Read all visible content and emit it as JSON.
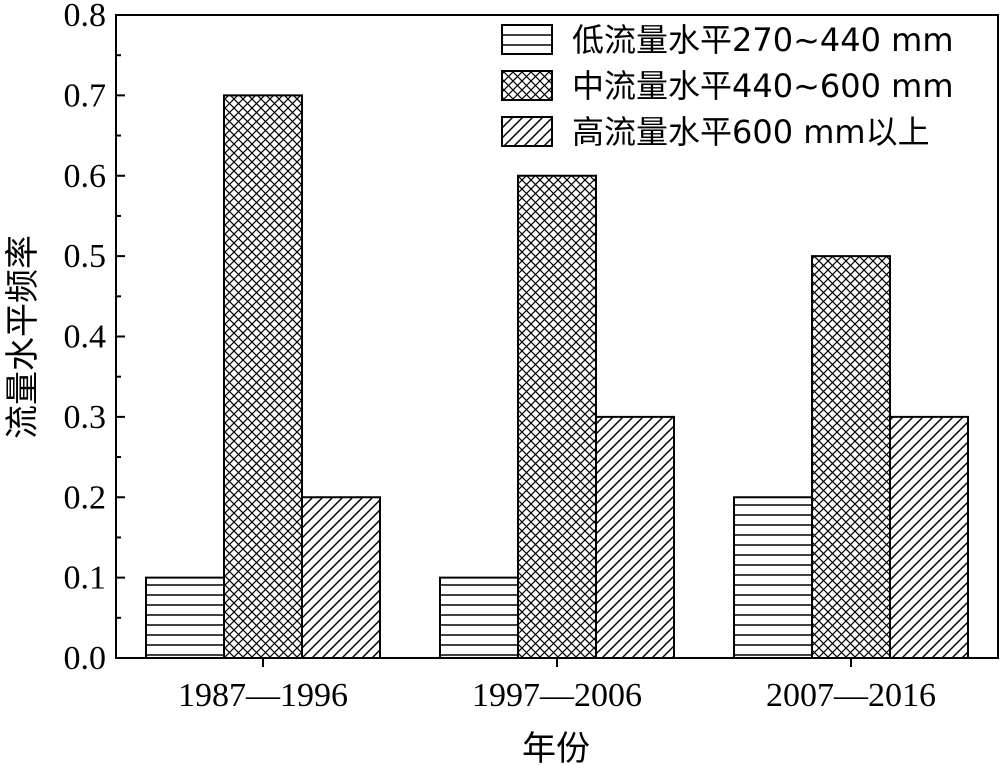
{
  "chart_data": {
    "type": "bar",
    "categories": [
      "1987—1996",
      "1997—2006",
      "2007—2016"
    ],
    "series": [
      {
        "name": "低流量水平270~440 mm",
        "values": [
          0.1,
          0.1,
          0.2
        ],
        "pattern": "horizontal"
      },
      {
        "name": "中流量水平440~600 mm",
        "values": [
          0.7,
          0.6,
          0.5
        ],
        "pattern": "crosshatch"
      },
      {
        "name": "高流量水平600 mm以上",
        "values": [
          0.2,
          0.3,
          0.3
        ],
        "pattern": "diagonal"
      }
    ],
    "title": "",
    "xlabel": "年份",
    "ylabel": "流量水平频率",
    "ylim": [
      0,
      0.8
    ],
    "yticks": [
      "0.0",
      "0.1",
      "0.2",
      "0.3",
      "0.4",
      "0.5",
      "0.6",
      "0.7",
      "0.8"
    ],
    "grid": false,
    "legend_position": "top-right",
    "colors": {
      "fill": "#ffffff",
      "stroke": "#000000",
      "background": "#ffffff"
    }
  }
}
